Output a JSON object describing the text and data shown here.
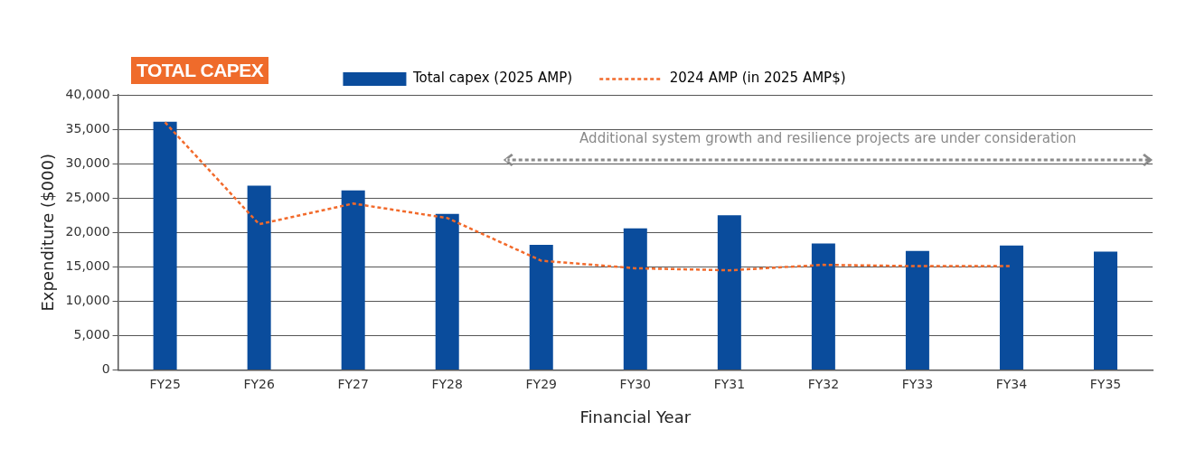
{
  "chart_data": {
    "type": "bar",
    "title": "TOTAL CAPEX",
    "xlabel": "Financial Year",
    "ylabel": "Expenditure ($000)",
    "categories": [
      "FY25",
      "FY26",
      "FY27",
      "FY28",
      "FY29",
      "FY30",
      "FY31",
      "FY32",
      "FY33",
      "FY34",
      "FY35"
    ],
    "series": [
      {
        "name": "Total capex (2025 AMP)",
        "color": "#0a4c9c",
        "values": [
          36100,
          26800,
          26100,
          22700,
          18200,
          20600,
          22500,
          18400,
          17300,
          18100,
          17200
        ]
      },
      {
        "name": "2024 AMP (in 2025 AMP$)",
        "type": "line",
        "color": "#f26a2b",
        "line_style": "dashed",
        "marker": "none",
        "values": [
          36000,
          21200,
          24200,
          22100,
          15900,
          14800,
          14500,
          15300,
          15100,
          15100,
          null
        ]
      }
    ],
    "ylim": [
      0,
      40000
    ],
    "yticks": [
      0,
      {
        "value": 5000,
        "label": "5,000"
      },
      {
        "value": 10000,
        "label": "10,000"
      },
      {
        "value": 15000,
        "label": "15,000"
      },
      {
        "value": 20000,
        "label": "20,000"
      },
      {
        "value": 25000,
        "label": "25,000"
      },
      {
        "value": 30000,
        "label": "30,000"
      },
      {
        "value": 35000,
        "label": "35,000"
      },
      {
        "value": 40000,
        "label": "40,000"
      }
    ],
    "grid": "y",
    "legend": "top",
    "annotations": [
      "Additional system growth and resilience projects are under consideration"
    ]
  }
}
